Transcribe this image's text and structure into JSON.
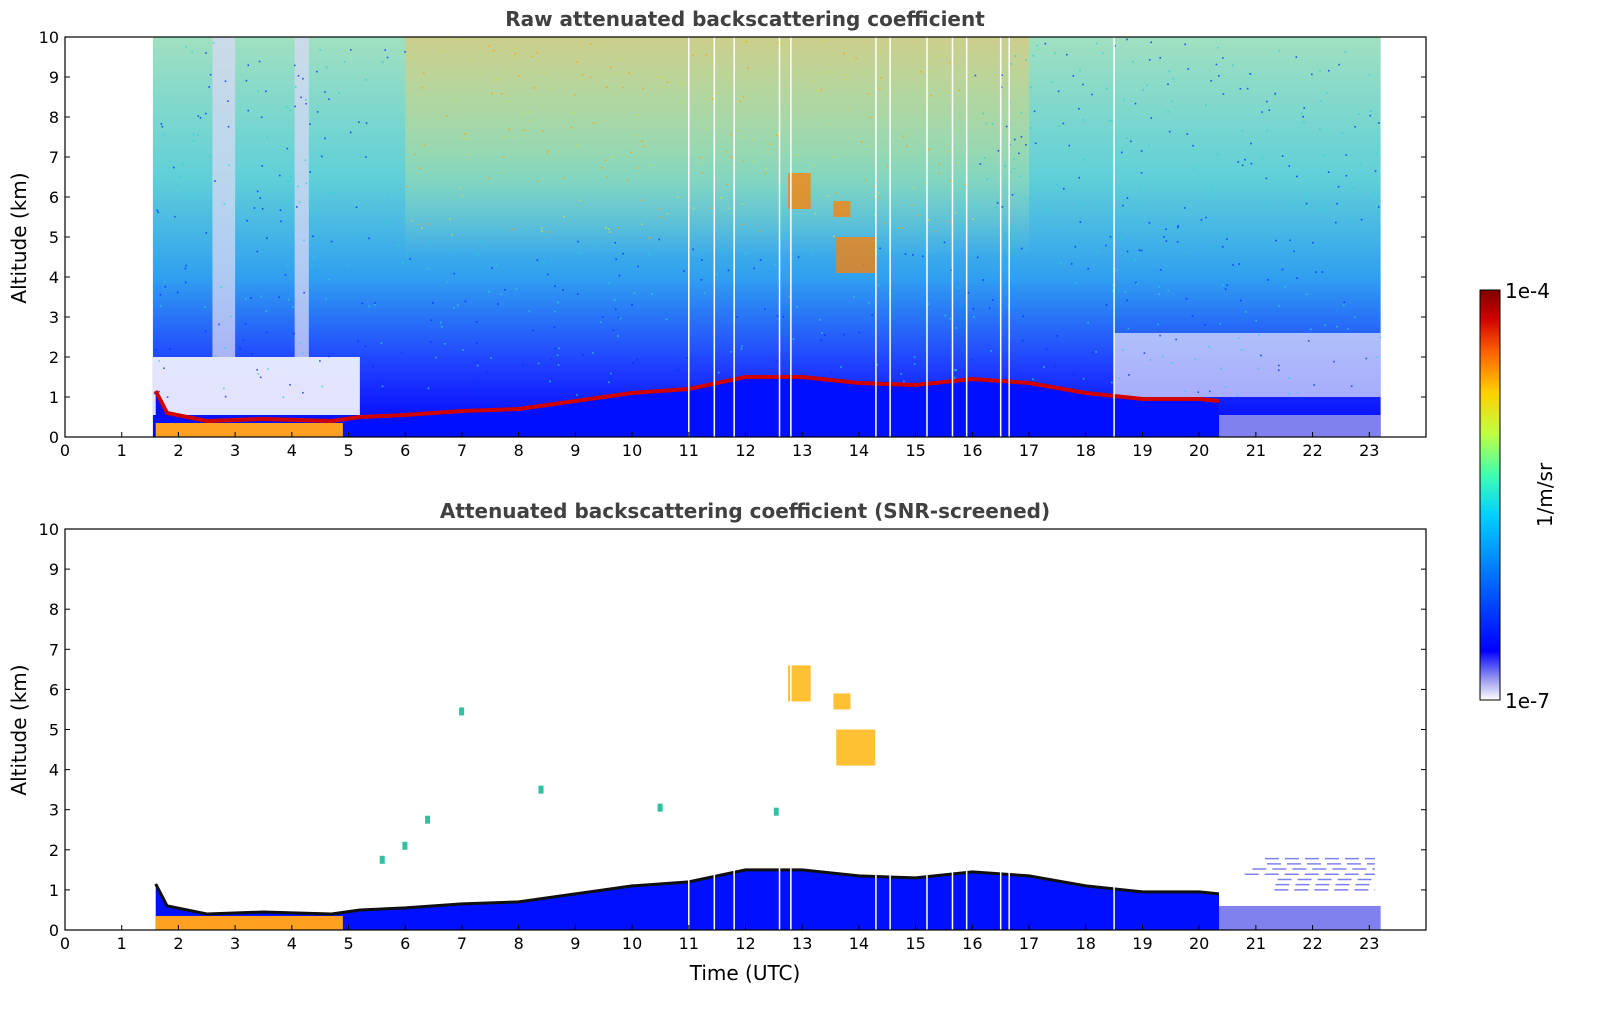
{
  "chart_data": [
    {
      "type": "heatmap",
      "title": "Raw attenuated backscattering coefficient",
      "xlabel": "",
      "ylabel": "Altitude (km)",
      "xlim": [
        0,
        24
      ],
      "ylim": [
        0,
        10
      ],
      "xticks": [
        "0",
        "1",
        "2",
        "3",
        "4",
        "5",
        "6",
        "7",
        "8",
        "9",
        "10",
        "11",
        "12",
        "13",
        "14",
        "15",
        "16",
        "17",
        "18",
        "19",
        "20",
        "21",
        "22",
        "23"
      ],
      "yticks": [
        "0",
        "1",
        "2",
        "3",
        "4",
        "5",
        "6",
        "7",
        "8",
        "9",
        "10"
      ],
      "data_time_range": [
        1.55,
        23.2
      ],
      "boundary_layer_top_km": [
        {
          "t": 1.6,
          "h": 1.15
        },
        {
          "t": 1.8,
          "h": 0.6
        },
        {
          "t": 2.5,
          "h": 0.4
        },
        {
          "t": 3.5,
          "h": 0.45
        },
        {
          "t": 4.7,
          "h": 0.4
        },
        {
          "t": 5.2,
          "h": 0.5
        },
        {
          "t": 6,
          "h": 0.55
        },
        {
          "t": 7,
          "h": 0.65
        },
        {
          "t": 8,
          "h": 0.7
        },
        {
          "t": 9,
          "h": 0.9
        },
        {
          "t": 10,
          "h": 1.1
        },
        {
          "t": 11,
          "h": 1.2
        },
        {
          "t": 12,
          "h": 1.5
        },
        {
          "t": 13,
          "h": 1.5
        },
        {
          "t": 14,
          "h": 1.35
        },
        {
          "t": 15,
          "h": 1.3
        },
        {
          "t": 16,
          "h": 1.45
        },
        {
          "t": 17,
          "h": 1.35
        },
        {
          "t": 18,
          "h": 1.1
        },
        {
          "t": 19,
          "h": 0.95
        },
        {
          "t": 20,
          "h": 0.95
        },
        {
          "t": 20.35,
          "h": 0.9
        }
      ],
      "elevated_layers": [
        {
          "t0": 12.75,
          "t1": 13.15,
          "h0": 5.7,
          "h1": 6.6
        },
        {
          "t0": 13.55,
          "t1": 13.85,
          "h0": 5.5,
          "h1": 5.9
        },
        {
          "t0": 13.6,
          "t1": 14.3,
          "h0": 4.1,
          "h1": 5.0
        }
      ]
    },
    {
      "type": "heatmap",
      "title": "Attenuated backscattering coefficient (SNR-screened)",
      "xlabel": "Time (UTC)",
      "ylabel": "Altitude (km)",
      "xlim": [
        0,
        24
      ],
      "ylim": [
        0,
        10
      ],
      "xticks": [
        "0",
        "1",
        "2",
        "3",
        "4",
        "5",
        "6",
        "7",
        "8",
        "9",
        "10",
        "11",
        "12",
        "13",
        "14",
        "15",
        "16",
        "17",
        "18",
        "19",
        "20",
        "21",
        "22",
        "23"
      ],
      "yticks": [
        "0",
        "1",
        "2",
        "3",
        "4",
        "5",
        "6",
        "7",
        "8",
        "9",
        "10"
      ]
    }
  ],
  "colorbar": {
    "label": "1/m/sr",
    "max_label": "1e-4",
    "min_label": "1e-7",
    "scale": "log",
    "colormap": [
      "#ffffff",
      "#9a9af0",
      "#0000ff",
      "#0070ff",
      "#00d0ff",
      "#40ffb0",
      "#c0ff40",
      "#ffd000",
      "#ff6000",
      "#d00000",
      "#800000"
    ]
  }
}
